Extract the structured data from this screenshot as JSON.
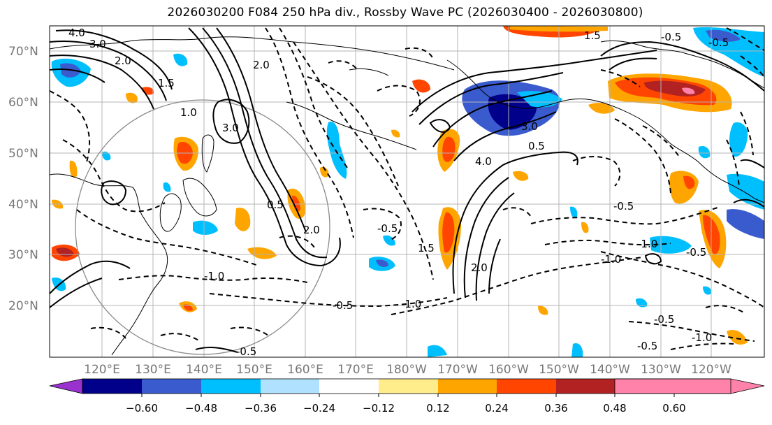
{
  "title": "2026030200 F084 250 hPa div., Rossby Wave PC (2026030400 - 2026030800)",
  "map": {
    "lat_labels": [
      "70°N",
      "60°N",
      "50°N",
      "40°N",
      "30°N",
      "20°N"
    ],
    "lon_labels": [
      "120°E",
      "130°E",
      "140°E",
      "150°E",
      "160°E",
      "170°E",
      "180°W",
      "170°W",
      "160°W",
      "150°W",
      "140°W",
      "130°W",
      "120°W"
    ],
    "contour_labels": [
      {
        "text": "4.0"
      },
      {
        "text": "3.0"
      },
      {
        "text": "2.0"
      },
      {
        "text": "1.5"
      },
      {
        "text": "1.0"
      },
      {
        "text": "3.0"
      },
      {
        "text": "2.0"
      },
      {
        "text": "0.5"
      },
      {
        "text": "2.0"
      },
      {
        "text": "-1.0"
      },
      {
        "text": "-0.5"
      },
      {
        "text": "-1.0"
      },
      {
        "text": "-0.5"
      },
      {
        "text": "1.5"
      },
      {
        "text": "4.0"
      },
      {
        "text": "3.0"
      },
      {
        "text": "-0.5"
      },
      {
        "text": "1.5"
      },
      {
        "text": "-0.5"
      },
      {
        "text": "-1.0"
      },
      {
        "text": "-1.0"
      },
      {
        "text": "-0.5"
      },
      {
        "text": "-0.5"
      },
      {
        "text": "-0.5"
      },
      {
        "text": "0.5"
      },
      {
        "text": "2.0"
      },
      {
        "text": "-1.0"
      },
      {
        "text": "-0.5"
      },
      {
        "text": "-0.5"
      }
    ]
  },
  "colorbar": {
    "ticks": [
      "−0.60",
      "−0.48",
      "−0.36",
      "−0.24",
      "−0.12",
      "0.12",
      "0.24",
      "0.36",
      "0.48",
      "0.60"
    ],
    "colors": [
      "#9a32cd",
      "#00008b",
      "#3a5bcd",
      "#00bfff",
      "#b0e2ff",
      "#ffffff",
      "#ffec8b",
      "#ffa500",
      "#ff4500",
      "#b22222",
      "#ff82ab"
    ]
  }
}
